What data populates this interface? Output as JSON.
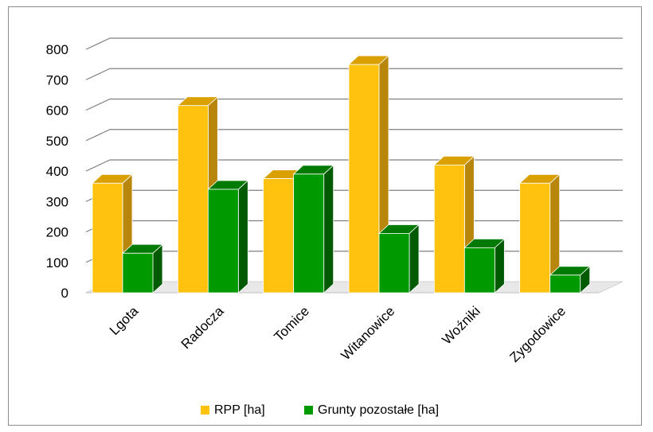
{
  "chart_data": {
    "type": "bar",
    "categories": [
      "Lgota",
      "Radocza",
      "Tomice",
      "Witanowice",
      "Woźniki",
      "Zygodowice"
    ],
    "series": [
      {
        "name": "RPP [ha]",
        "values": [
          360,
          615,
          375,
          750,
          420,
          360
        ],
        "color": "#ffc20e",
        "side_color": "#b8860b",
        "top_color": "#d9a000"
      },
      {
        "name": "Grunty pozostałe [ha]",
        "values": [
          130,
          340,
          390,
          195,
          148,
          58
        ],
        "color": "#009900",
        "side_color": "#005a00",
        "top_color": "#007a00"
      }
    ],
    "y_ticks": [
      "0",
      "100",
      "200",
      "300",
      "400",
      "500",
      "600",
      "700",
      "800"
    ],
    "ylim": [
      0,
      800
    ],
    "grid": true,
    "legend_position": "bottom",
    "title": "",
    "xlabel": "",
    "ylabel": ""
  }
}
